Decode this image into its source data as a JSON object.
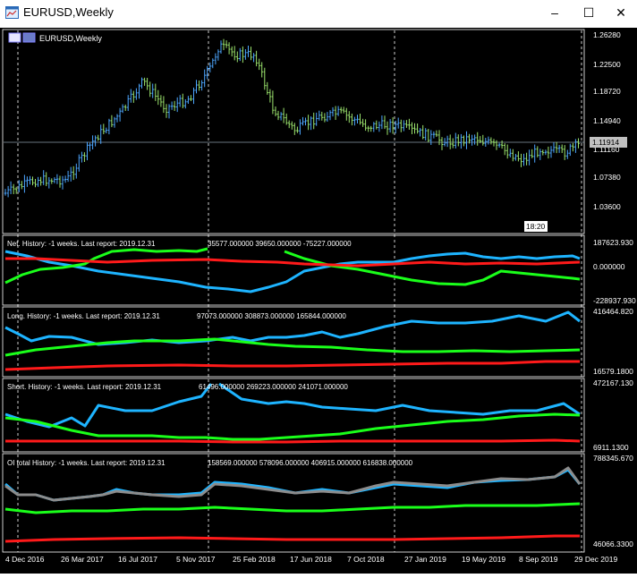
{
  "window": {
    "title": "EURUSD,Weekly",
    "controls": [
      "–",
      "☐",
      "✕"
    ]
  },
  "chart": {
    "symbol_label": "EURUSD,Weekly",
    "time_label": "18:20",
    "current_price": "1.11914",
    "price_ticks": [
      "1.26280",
      "1.22500",
      "1.18720",
      "1.14940",
      "1.11160",
      "1.07380",
      "1.03600"
    ],
    "date_ticks": [
      "4 Dec 2016",
      "26 Mar 2017",
      "16 Jul 2017",
      "5 Nov 2017",
      "25 Feb 2018",
      "17 Jun 2018",
      "7 Oct 2018",
      "27 Jan 2019",
      "19 May 2019",
      "8 Sep 2019",
      "29 Dec 2019"
    ],
    "colors": {
      "background": "#000000",
      "bull": "#4da6ff",
      "bear": "#9be36d",
      "grid": "#ffffff",
      "red": "#ff1a1a",
      "green": "#1aff1a",
      "blue": "#1eb4ff",
      "gray": "#8c8c8c"
    }
  },
  "indicators": [
    {
      "label": "Net. History: -1 weeks. Last report: 2019.12.31",
      "values": "35577.000000 39650.000000 -75227.000000",
      "axis_top": "187623.930",
      "axis_mid": "0.000000",
      "axis_bottom": "-228937.930"
    },
    {
      "label": "Long. History: -1 weeks. Last report: 2019.12.31",
      "values": "97073.000000 308873.000000 165844.000000",
      "axis_top": "416464.820",
      "axis_bottom": "16579.1800"
    },
    {
      "label": "Short. History: -1 weeks. Last report: 2019.12.31",
      "values": "61496.000000 269223.000000 241071.000000",
      "axis_top": "472167.130",
      "axis_bottom": "6911.1300"
    },
    {
      "label": "OI total History: -1 weeks. Last report: 2019.12.31",
      "values": "158569.000000 578096.000000 406915.000000 616838.000000",
      "axis_top": "788345.670",
      "axis_bottom": "46066.3300"
    }
  ]
}
